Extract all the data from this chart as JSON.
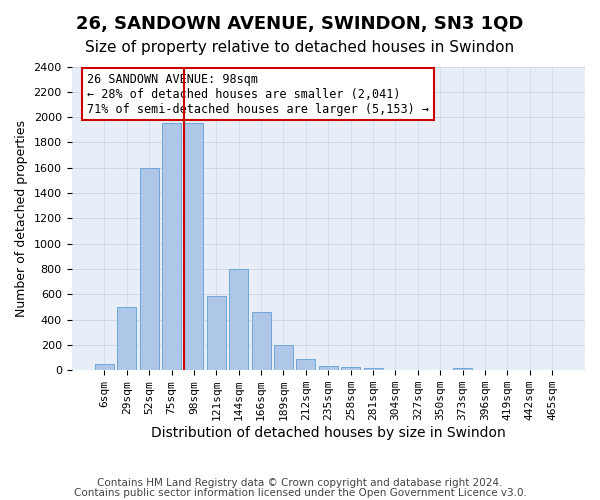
{
  "title": "26, SANDOWN AVENUE, SWINDON, SN3 1QD",
  "subtitle": "Size of property relative to detached houses in Swindon",
  "xlabel": "Distribution of detached houses by size in Swindon",
  "ylabel": "Number of detached properties",
  "footnote1": "Contains HM Land Registry data © Crown copyright and database right 2024.",
  "footnote2": "Contains public sector information licensed under the Open Government Licence v3.0.",
  "bar_labels": [
    "6sqm",
    "29sqm",
    "52sqm",
    "75sqm",
    "98sqm",
    "121sqm",
    "144sqm",
    "166sqm",
    "189sqm",
    "212sqm",
    "235sqm",
    "258sqm",
    "281sqm",
    "304sqm",
    "327sqm",
    "350sqm",
    "373sqm",
    "396sqm",
    "419sqm",
    "442sqm",
    "465sqm"
  ],
  "bar_heights": [
    50,
    500,
    1600,
    1950,
    1950,
    590,
    800,
    460,
    200,
    90,
    35,
    25,
    15,
    0,
    0,
    0,
    15,
    0,
    0,
    0,
    0
  ],
  "bar_color": "#aec6e8",
  "bar_edge_color": "#6fa8d6",
  "vline_x": 3.575,
  "vline_color": "#cc0000",
  "annotation_text": "26 SANDOWN AVENUE: 98sqm\n← 28% of detached houses are smaller (2,041)\n71% of semi-detached houses are larger (5,153) →",
  "annotation_box_color": "#cc0000",
  "ylim": [
    0,
    2400
  ],
  "yticks": [
    0,
    200,
    400,
    600,
    800,
    1000,
    1200,
    1400,
    1600,
    1800,
    2000,
    2200,
    2400
  ],
  "grid_color": "#d0d8e8",
  "bg_color": "#e8eef8",
  "title_fontsize": 13,
  "subtitle_fontsize": 11,
  "xlabel_fontsize": 10,
  "ylabel_fontsize": 9,
  "tick_fontsize": 8,
  "annot_fontsize": 8.5,
  "footnote_fontsize": 7.5
}
